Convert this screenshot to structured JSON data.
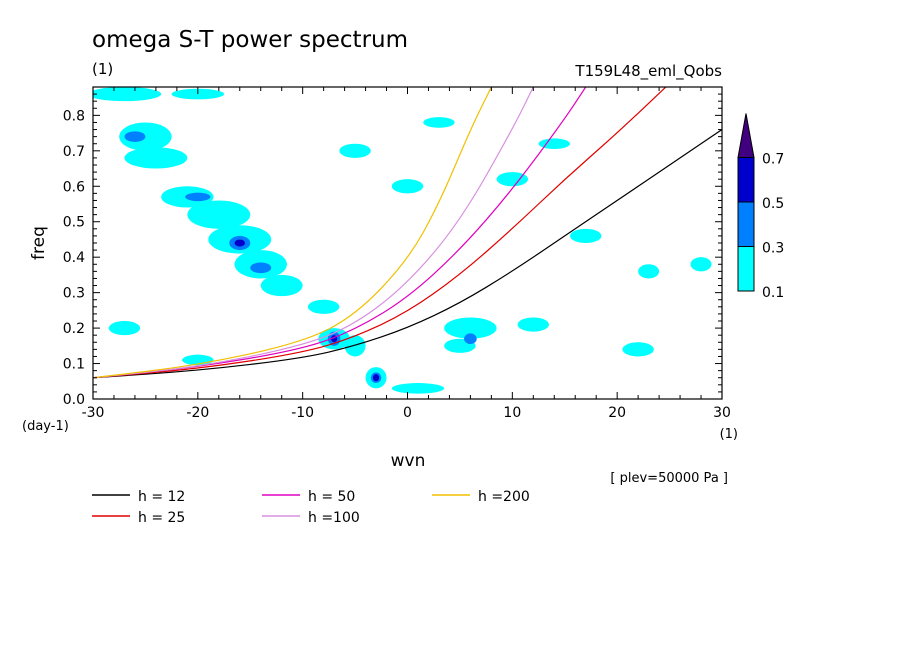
{
  "chart_data": {
    "type": "heatmap",
    "title": "omega S-T power spectrum",
    "subtitle": "(1)",
    "experiment": "T159L48_eml_Qobs",
    "xlabel": "wvn",
    "x_unit": "(1)",
    "ylabel": "freq",
    "y_unit": "(day-1)",
    "note": "[ plev=50000 Pa ]",
    "xlim": [
      -30,
      30
    ],
    "ylim": [
      0,
      0.88
    ],
    "x_ticks": [
      -30,
      -20,
      -10,
      0,
      10,
      20,
      30
    ],
    "y_ticks": [
      0.0,
      0.1,
      0.2,
      0.3,
      0.4,
      0.5,
      0.6,
      0.7,
      0.8
    ],
    "x_tick_labels": [
      "-30",
      "-20",
      "-10",
      "0",
      "10",
      "20",
      "30"
    ],
    "y_tick_labels": [
      "0.0",
      "0.1",
      "0.2",
      "0.3",
      "0.4",
      "0.5",
      "0.6",
      "0.7",
      "0.8"
    ],
    "colorbar": {
      "levels": [
        "0.1",
        "0.3",
        "0.5",
        "0.7"
      ],
      "colors": [
        "#00ffff",
        "#0080ff",
        "#0000cc",
        "#400080"
      ]
    },
    "series": [
      {
        "name": "h = 12",
        "color": "#000000",
        "x": [
          -30,
          -20,
          -10,
          -5,
          0,
          5,
          10,
          15,
          20,
          25,
          30
        ],
        "y": [
          0.06,
          0.08,
          0.115,
          0.15,
          0.2,
          0.27,
          0.36,
          0.46,
          0.56,
          0.66,
          0.76
        ]
      },
      {
        "name": "h = 25",
        "color": "#e00000",
        "x": [
          -30,
          -20,
          -10,
          -5,
          0,
          5,
          10,
          15,
          20,
          25
        ],
        "y": [
          0.06,
          0.085,
          0.13,
          0.175,
          0.245,
          0.35,
          0.48,
          0.62,
          0.75,
          0.89
        ]
      },
      {
        "name": "h = 50",
        "color": "#e000c0",
        "x": [
          -30,
          -20,
          -10,
          -5,
          0,
          5,
          10,
          15,
          17
        ],
        "y": [
          0.06,
          0.09,
          0.14,
          0.195,
          0.285,
          0.42,
          0.59,
          0.79,
          0.88
        ]
      },
      {
        "name": "h =100",
        "color": "#d890e0",
        "x": [
          -30,
          -20,
          -10,
          -5,
          0,
          5,
          10,
          12
        ],
        "y": [
          0.06,
          0.09,
          0.15,
          0.21,
          0.325,
          0.5,
          0.76,
          0.88
        ]
      },
      {
        "name": "h =200",
        "color": "#f0c000",
        "x": [
          -30,
          -20,
          -10,
          -5,
          0,
          3,
          6,
          8
        ],
        "y": [
          0.06,
          0.095,
          0.16,
          0.235,
          0.39,
          0.55,
          0.76,
          0.88
        ]
      }
    ],
    "legend": [
      {
        "label": "h = 12",
        "color": "#000000"
      },
      {
        "label": "h = 25",
        "color": "#e00000"
      },
      {
        "label": "h = 50",
        "color": "#e000c0"
      },
      {
        "label": "h =100",
        "color": "#d890e0"
      },
      {
        "label": "h =200",
        "color": "#f0c000"
      }
    ],
    "contours": [
      {
        "level": 0.1,
        "x": -27,
        "y": 0.86,
        "rx": 3.5,
        "ry": 0.02
      },
      {
        "level": 0.1,
        "x": -20,
        "y": 0.86,
        "rx": 2.5,
        "ry": 0.015
      },
      {
        "level": 0.1,
        "x": -25,
        "y": 0.74,
        "rx": 2.5,
        "ry": 0.04
      },
      {
        "level": 0.1,
        "x": -24,
        "y": 0.68,
        "rx": 3.0,
        "ry": 0.03
      },
      {
        "level": 0.1,
        "x": -21,
        "y": 0.57,
        "rx": 2.5,
        "ry": 0.03
      },
      {
        "level": 0.1,
        "x": -18,
        "y": 0.52,
        "rx": 3.0,
        "ry": 0.04
      },
      {
        "level": 0.1,
        "x": -16,
        "y": 0.45,
        "rx": 3.0,
        "ry": 0.04
      },
      {
        "level": 0.1,
        "x": -14,
        "y": 0.38,
        "rx": 2.5,
        "ry": 0.04
      },
      {
        "level": 0.1,
        "x": -12,
        "y": 0.32,
        "rx": 2.0,
        "ry": 0.03
      },
      {
        "level": 0.1,
        "x": -8,
        "y": 0.26,
        "rx": 1.5,
        "ry": 0.02
      },
      {
        "level": 0.1,
        "x": -7,
        "y": 0.17,
        "rx": 1.5,
        "ry": 0.03
      },
      {
        "level": 0.1,
        "x": -5,
        "y": 0.15,
        "rx": 1.0,
        "ry": 0.03
      },
      {
        "level": 0.1,
        "x": -3,
        "y": 0.06,
        "rx": 1.0,
        "ry": 0.03
      },
      {
        "level": 0.1,
        "x": 1,
        "y": 0.03,
        "rx": 2.5,
        "ry": 0.015
      },
      {
        "level": 0.1,
        "x": 6,
        "y": 0.2,
        "rx": 2.5,
        "ry": 0.03
      },
      {
        "level": 0.1,
        "x": 5,
        "y": 0.15,
        "rx": 1.5,
        "ry": 0.02
      },
      {
        "level": 0.1,
        "x": 10,
        "y": 0.62,
        "rx": 1.5,
        "ry": 0.02
      },
      {
        "level": 0.1,
        "x": -5,
        "y": 0.7,
        "rx": 1.5,
        "ry": 0.02
      },
      {
        "level": 0.1,
        "x": 3,
        "y": 0.78,
        "rx": 1.5,
        "ry": 0.015
      },
      {
        "level": 0.1,
        "x": 17,
        "y": 0.46,
        "rx": 1.5,
        "ry": 0.02
      },
      {
        "level": 0.1,
        "x": 23,
        "y": 0.36,
        "rx": 1.0,
        "ry": 0.02
      },
      {
        "level": 0.1,
        "x": 28,
        "y": 0.38,
        "rx": 1.0,
        "ry": 0.02
      },
      {
        "level": 0.1,
        "x": 12,
        "y": 0.21,
        "rx": 1.5,
        "ry": 0.02
      },
      {
        "level": 0.1,
        "x": 0,
        "y": 0.6,
        "rx": 1.5,
        "ry": 0.02
      },
      {
        "level": 0.1,
        "x": -27,
        "y": 0.2,
        "rx": 1.5,
        "ry": 0.02
      },
      {
        "level": 0.1,
        "x": -20,
        "y": 0.11,
        "rx": 1.5,
        "ry": 0.015
      },
      {
        "level": 0.1,
        "x": 22,
        "y": 0.14,
        "rx": 1.5,
        "ry": 0.02
      },
      {
        "level": 0.1,
        "x": 14,
        "y": 0.72,
        "rx": 1.5,
        "ry": 0.015
      },
      {
        "level": 0.3,
        "x": -26,
        "y": 0.74,
        "rx": 1.0,
        "ry": 0.015
      },
      {
        "level": 0.3,
        "x": -20,
        "y": 0.57,
        "rx": 1.2,
        "ry": 0.012
      },
      {
        "level": 0.3,
        "x": -16,
        "y": 0.44,
        "rx": 1.0,
        "ry": 0.02
      },
      {
        "level": 0.3,
        "x": -14,
        "y": 0.37,
        "rx": 1.0,
        "ry": 0.015
      },
      {
        "level": 0.3,
        "x": -7,
        "y": 0.17,
        "rx": 0.6,
        "ry": 0.02
      },
      {
        "level": 0.3,
        "x": -3,
        "y": 0.06,
        "rx": 0.5,
        "ry": 0.015
      },
      {
        "level": 0.3,
        "x": 6,
        "y": 0.17,
        "rx": 0.6,
        "ry": 0.015
      },
      {
        "level": 0.5,
        "x": -16,
        "y": 0.44,
        "rx": 0.5,
        "ry": 0.01
      },
      {
        "level": 0.5,
        "x": -7,
        "y": 0.17,
        "rx": 0.3,
        "ry": 0.01
      },
      {
        "level": 0.5,
        "x": -3,
        "y": 0.06,
        "rx": 0.3,
        "ry": 0.01
      }
    ]
  }
}
